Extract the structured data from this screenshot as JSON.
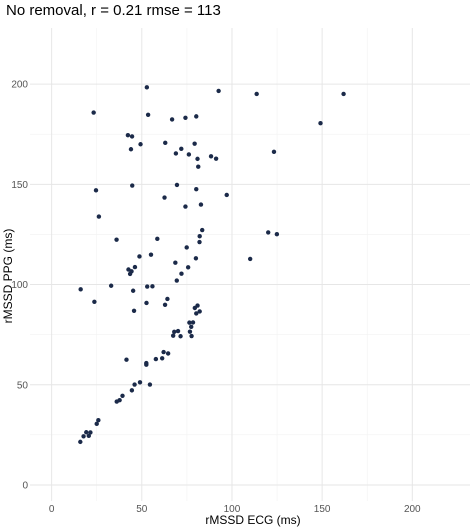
{
  "chart_data": {
    "type": "scatter",
    "title": "No removal, r = 0.21 rmse = 113",
    "xlabel": "rMSSD ECG (ms)",
    "ylabel": "rMSSD PPG (ms)",
    "xlim": [
      -12,
      232
    ],
    "ylim": [
      -8,
      228
    ],
    "xticks": [
      0,
      50,
      100,
      150,
      200
    ],
    "yticks": [
      0,
      50,
      100,
      150,
      200
    ],
    "grid": true,
    "point_color": "#1b2a49",
    "points": [
      [
        15.9,
        21.5
      ],
      [
        17.7,
        24.3
      ],
      [
        19.2,
        26.3
      ],
      [
        20.6,
        24.5
      ],
      [
        21.5,
        26.2
      ],
      [
        25.0,
        30.5
      ],
      [
        25.9,
        32.3
      ],
      [
        36.1,
        41.6
      ],
      [
        37.7,
        42.3
      ],
      [
        39.3,
        44.5
      ],
      [
        44.5,
        47.2
      ],
      [
        46.0,
        50.1
      ],
      [
        49.0,
        51.2
      ],
      [
        52.5,
        60.0
      ],
      [
        52.5,
        60.8
      ],
      [
        54.5,
        50.1
      ],
      [
        57.8,
        62.8
      ],
      [
        62.1,
        66.3
      ],
      [
        64.6,
        65.6
      ],
      [
        61.3,
        63.2
      ],
      [
        67.4,
        74.5
      ],
      [
        68.0,
        76.4
      ],
      [
        70.1,
        76.8
      ],
      [
        71.5,
        74.2
      ],
      [
        76.4,
        81.0
      ],
      [
        77.4,
        78.9
      ],
      [
        78.4,
        81.1
      ],
      [
        79.4,
        88.3
      ],
      [
        80.9,
        89.5
      ],
      [
        82.1,
        86.6
      ],
      [
        80.2,
        85.6
      ],
      [
        76.7,
        76.5
      ],
      [
        77.6,
        74.3
      ],
      [
        62.9,
        89.9
      ],
      [
        64.2,
        92.8
      ],
      [
        41.5,
        62.5
      ],
      [
        33.0,
        99.4
      ],
      [
        16.1,
        97.6
      ],
      [
        23.7,
        91.4
      ],
      [
        45.7,
        86.9
      ],
      [
        45.2,
        96.9
      ],
      [
        52.6,
        90.8
      ],
      [
        53.0,
        99.0
      ],
      [
        55.9,
        99.1
      ],
      [
        42.6,
        107.5
      ],
      [
        43.5,
        105.3
      ],
      [
        44.3,
        106.6
      ],
      [
        46.2,
        108.7
      ],
      [
        48.7,
        114.0
      ],
      [
        55.1,
        114.9
      ],
      [
        69.4,
        102.0
      ],
      [
        68.6,
        110.9
      ],
      [
        72.0,
        105.4
      ],
      [
        75.7,
        108.6
      ],
      [
        36.0,
        122.4
      ],
      [
        58.6,
        122.8
      ],
      [
        74.9,
        118.5
      ],
      [
        80.0,
        113.1
      ],
      [
        82.0,
        121.2
      ],
      [
        82.1,
        124.1
      ],
      [
        83.5,
        127.2
      ],
      [
        110.1,
        112.8
      ],
      [
        120.1,
        126.0
      ],
      [
        124.9,
        125.1
      ],
      [
        26.2,
        133.9
      ],
      [
        44.7,
        149.4
      ],
      [
        24.6,
        147.0
      ],
      [
        62.6,
        143.4
      ],
      [
        69.5,
        149.7
      ],
      [
        74.2,
        138.9
      ],
      [
        80.2,
        147.6
      ],
      [
        82.8,
        139.9
      ],
      [
        97.1,
        144.7
      ],
      [
        23.3,
        185.8
      ],
      [
        42.3,
        174.5
      ],
      [
        44.6,
        173.9
      ],
      [
        44.0,
        167.5
      ],
      [
        49.3,
        170.0
      ],
      [
        52.8,
        198.4
      ],
      [
        53.5,
        184.7
      ],
      [
        63.0,
        170.7
      ],
      [
        66.8,
        182.4
      ],
      [
        68.9,
        165.4
      ],
      [
        71.9,
        167.7
      ],
      [
        74.2,
        183.2
      ],
      [
        76.1,
        164.9
      ],
      [
        79.3,
        170.3
      ],
      [
        80.2,
        183.9
      ],
      [
        81.3,
        158.8
      ],
      [
        80.9,
        162.7
      ],
      [
        88.4,
        164.0
      ],
      [
        91.2,
        162.8
      ],
      [
        92.6,
        196.6
      ],
      [
        113.7,
        195.1
      ],
      [
        123.3,
        166.2
      ],
      [
        149.1,
        180.5
      ],
      [
        161.9,
        195.1
      ]
    ]
  }
}
